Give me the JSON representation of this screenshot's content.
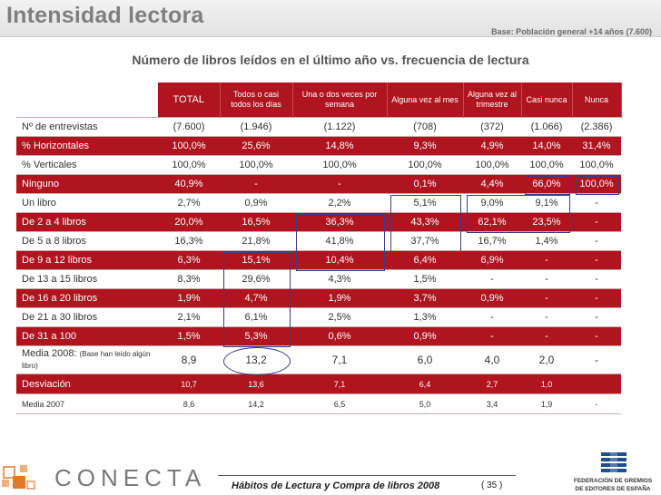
{
  "page": {
    "title": "Intensidad lectora",
    "base": "Base: Población general +14 años (7.600)",
    "subtitle": "Número de libros leídos en el último año vs. frecuencia de lectura"
  },
  "table": {
    "headers": [
      "TOTAL",
      "Todos o casi todos los días",
      "Una o dos veces por semana",
      "Alguna vez al mes",
      "Alguna vez al trimestre",
      "Casi nunca",
      "Nunca"
    ],
    "rows": [
      {
        "label": "Nº de entrevistas",
        "values": [
          "(7.600)",
          "(1.946)",
          "(1.122)",
          "(708)",
          "(372)",
          "(1.066)",
          "(2.386)"
        ]
      },
      {
        "label": "% Horizontales",
        "values": [
          "100,0%",
          "25,6%",
          "14,8%",
          "9,3%",
          "4,9%",
          "14,0%",
          "31,4%"
        ]
      },
      {
        "label": "% Verticales",
        "values": [
          "100,0%",
          "100,0%",
          "100,0%",
          "100,0%",
          "100,0%",
          "100,0%",
          "100,0%"
        ]
      },
      {
        "label": "Ninguno",
        "values": [
          "40,9%",
          "-",
          "-",
          "0,1%",
          "4,4%",
          "66,0%",
          "100,0%"
        ]
      },
      {
        "label": "Un libro",
        "values": [
          "2,7%",
          "0,9%",
          "2,2%",
          "5,1%",
          "9,0%",
          "9,1%",
          "-"
        ]
      },
      {
        "label": "De 2 a 4 libros",
        "values": [
          "20,0%",
          "16,5%",
          "36,3%",
          "43,3%",
          "62,1%",
          "23,5%",
          "-"
        ]
      },
      {
        "label": "De 5 a 8 libros",
        "values": [
          "16,3%",
          "21,8%",
          "41,8%",
          "37,7%",
          "16,7%",
          "1,4%",
          "-"
        ]
      },
      {
        "label": "De 9 a 12 libros",
        "values": [
          "6,3%",
          "15,1%",
          "10,4%",
          "6,4%",
          "6,9%",
          "-",
          "-"
        ]
      },
      {
        "label": "De 13 a 15 libros",
        "values": [
          "8,3%",
          "29,6%",
          "4,3%",
          "1,5%",
          "-",
          "-",
          "-"
        ]
      },
      {
        "label": "De 16 a 20 libros",
        "values": [
          "1,9%",
          "4,7%",
          "1,9%",
          "3,7%",
          "0,9%",
          "-",
          "-"
        ]
      },
      {
        "label": "De 21 a 30 libros",
        "values": [
          "2,1%",
          "6,1%",
          "2,5%",
          "1,3%",
          "-",
          "-",
          "-"
        ]
      },
      {
        "label": "De 31 a 100",
        "values": [
          "1,5%",
          "5,3%",
          "0,6%",
          "0,9%",
          "-",
          "-",
          "-"
        ]
      }
    ],
    "media2008": {
      "label": "Media 2008:",
      "note": "(Base han leído algún libro)",
      "values": [
        "8,9",
        "13,2",
        "7,1",
        "6,0",
        "4,0",
        "2,0",
        "-"
      ]
    },
    "desviacion": {
      "label": "Desviación",
      "values": [
        "10,7",
        "13,6",
        "7,1",
        "6,4",
        "2,7",
        "1,0",
        ""
      ]
    },
    "media2007": {
      "label": "Media 2007",
      "values": [
        "8,6",
        "14,2",
        "6,5",
        "5,0",
        "3,4",
        "1,9",
        "-"
      ]
    }
  },
  "footer": {
    "text": "Hábitos de Lectura y Compra de libros 2008",
    "page": "( 35 )",
    "brand": "CONECTA",
    "federation_line1": "FEDERACIÓN DE GREMIOS",
    "federation_line2": "DE EDITORES DE ESPAÑA"
  },
  "colors": {
    "header_red": "#b0141e",
    "annotation_blue": "#3b3b8f",
    "title_gray": "#7f7f7f"
  }
}
